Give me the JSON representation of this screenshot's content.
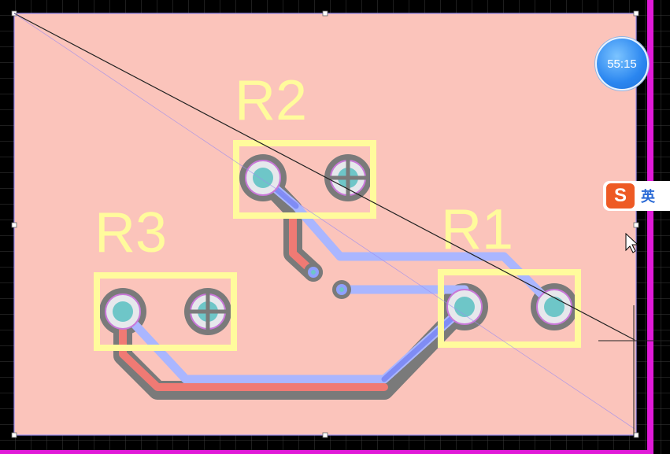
{
  "colors": {
    "background": "#000000",
    "grid": "#3d3d3d",
    "board": "#fbc4bb",
    "board_edge": "#9a8cf0",
    "magenta_frame": "#e01ad8",
    "silkscreen": "#fffb9c",
    "top_trace": "#f07a74",
    "bottom_trace": "#aab6ff",
    "bottom_trace_dim": "#7f8cf5",
    "clearance": "#7a7a7a",
    "pad_ring": "#e6e8ec",
    "pad_hole": "#6ec6c8",
    "crosshair": "#222222"
  },
  "components": [
    {
      "designator": "R2"
    },
    {
      "designator": "R1"
    },
    {
      "designator": "R3"
    }
  ],
  "overlays": {
    "timer_text": "55:15",
    "ime_logo": "S",
    "ime_language": "英"
  },
  "icons": [
    "sogou-ime-icon",
    "mouse-pointer-icon",
    "timer-bubble"
  ]
}
